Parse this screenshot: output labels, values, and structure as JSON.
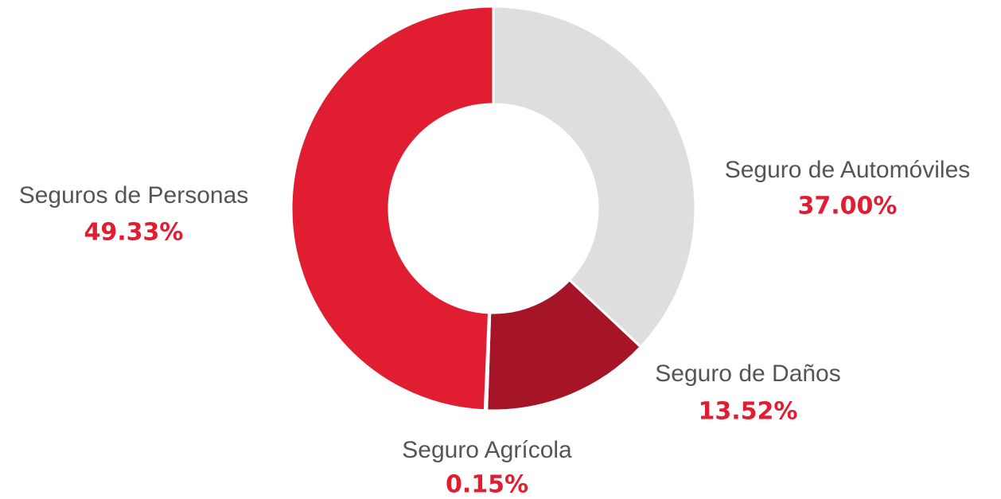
{
  "chart_data": {
    "type": "donut",
    "categories": [
      "Seguro de Automóviles",
      "Seguro de Daños",
      "Seguro Agrícola",
      "Seguros de Personas"
    ],
    "values": [
      37.0,
      13.52,
      0.15,
      49.33
    ],
    "value_labels": [
      "37.00%",
      "13.52%",
      "0.15%",
      "49.33%"
    ],
    "colors": [
      "#dedede",
      "#a51427",
      "#c81e2e",
      "#e11d31"
    ]
  }
}
